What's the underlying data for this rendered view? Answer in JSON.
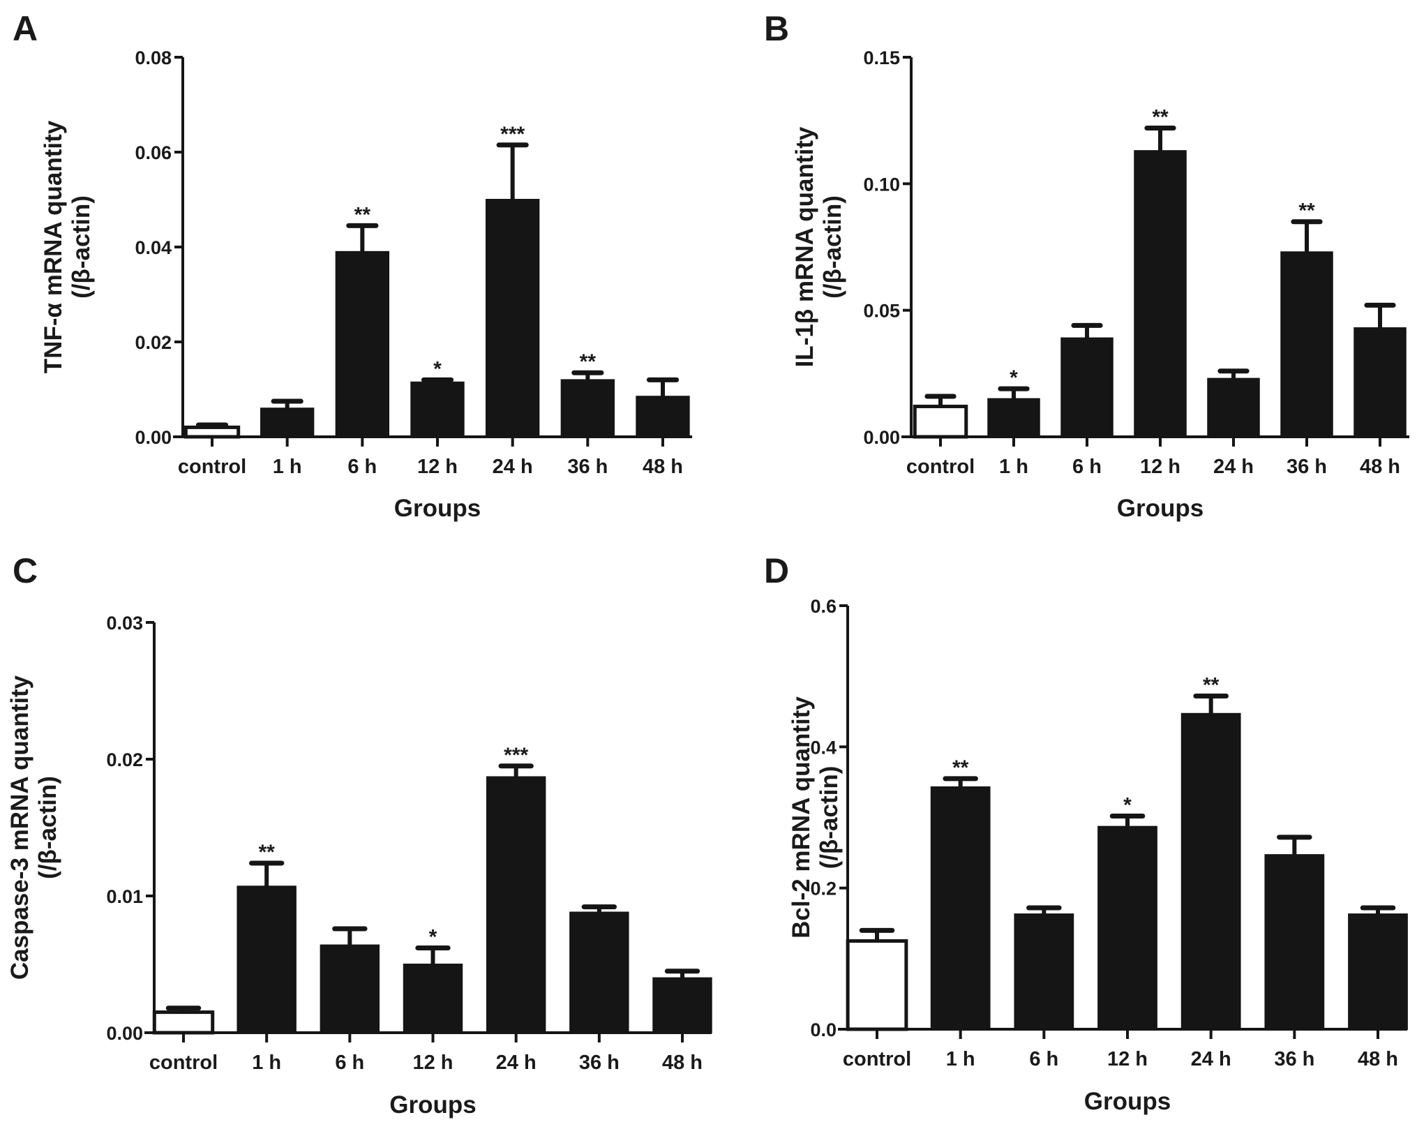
{
  "chart_data": [
    {
      "type": "bar",
      "panel": "A",
      "ylabel_line1": "TNF-α  mRNA quantity",
      "ylabel_line2": "(/β-actin)",
      "xlabel": "Groups",
      "categories": [
        "control",
        "1 h",
        "6 h",
        "12 h",
        "24 h",
        "36 h",
        "48 h"
      ],
      "values": [
        0.002,
        0.006,
        0.039,
        0.0115,
        0.05,
        0.012,
        0.0085
      ],
      "error_upper": [
        0.0025,
        0.0075,
        0.0445,
        0.012,
        0.0615,
        0.0135,
        0.012
      ],
      "significance": [
        "",
        "",
        "**",
        "*",
        "***",
        "**",
        ""
      ],
      "ylim": [
        0,
        0.08
      ],
      "yticks": [
        "0.00",
        "0.02",
        "0.04",
        "0.06",
        "0.08"
      ],
      "ytick_values": [
        0,
        0.02,
        0.04,
        0.06,
        0.08
      ]
    },
    {
      "type": "bar",
      "panel": "B",
      "ylabel_line1": "IL-1β  mRNA quantity",
      "ylabel_line2": "(/β-actin)",
      "xlabel": "Groups",
      "categories": [
        "control",
        "1 h",
        "6 h",
        "12 h",
        "24 h",
        "36 h",
        "48 h"
      ],
      "values": [
        0.012,
        0.015,
        0.039,
        0.113,
        0.023,
        0.073,
        0.043
      ],
      "error_upper": [
        0.016,
        0.019,
        0.044,
        0.122,
        0.026,
        0.085,
        0.052
      ],
      "significance": [
        "",
        "*",
        "",
        "**",
        "",
        "**",
        ""
      ],
      "ylim": [
        0,
        0.15
      ],
      "yticks": [
        "0.00",
        "0.05",
        "0.10",
        "0.15"
      ],
      "ytick_values": [
        0,
        0.05,
        0.1,
        0.15
      ]
    },
    {
      "type": "bar",
      "panel": "C",
      "ylabel_line1": "Caspase-3 mRNA quantity",
      "ylabel_line2": "(/β-actin)",
      "xlabel": "Groups",
      "categories": [
        "control",
        "1 h",
        "6 h",
        "12 h",
        "24 h",
        "36 h",
        "48 h"
      ],
      "values": [
        0.0015,
        0.0107,
        0.0064,
        0.005,
        0.0187,
        0.0088,
        0.004
      ],
      "error_upper": [
        0.0018,
        0.0124,
        0.0076,
        0.0062,
        0.0195,
        0.0092,
        0.0045
      ],
      "significance": [
        "",
        "**",
        "",
        "*",
        "***",
        "",
        ""
      ],
      "ylim": [
        0,
        0.03
      ],
      "yticks": [
        "0.00",
        "0.01",
        "0.02",
        "0.03"
      ],
      "ytick_values": [
        0,
        0.01,
        0.02,
        0.03
      ]
    },
    {
      "type": "bar",
      "panel": "D",
      "ylabel_line1": "Bcl-2 mRNA quantity",
      "ylabel_line2": "(/β-actin)",
      "xlabel": "Groups",
      "categories": [
        "control",
        "1 h",
        "6 h",
        "12 h",
        "24 h",
        "36 h",
        "48 h"
      ],
      "values": [
        0.125,
        0.343,
        0.163,
        0.287,
        0.447,
        0.247,
        0.163
      ],
      "error_upper": [
        0.14,
        0.355,
        0.172,
        0.302,
        0.472,
        0.272,
        0.172
      ],
      "significance": [
        "",
        "**",
        "",
        "*",
        "**",
        "",
        ""
      ],
      "ylim": [
        0,
        0.6
      ],
      "yticks": [
        "0.0",
        "0.2",
        "0.4",
        "0.6"
      ],
      "ytick_values": [
        0,
        0.2,
        0.4,
        0.6
      ]
    }
  ],
  "colors": {
    "bar": "#151515",
    "control_bar": "#ffffff",
    "axis": "#151515"
  }
}
